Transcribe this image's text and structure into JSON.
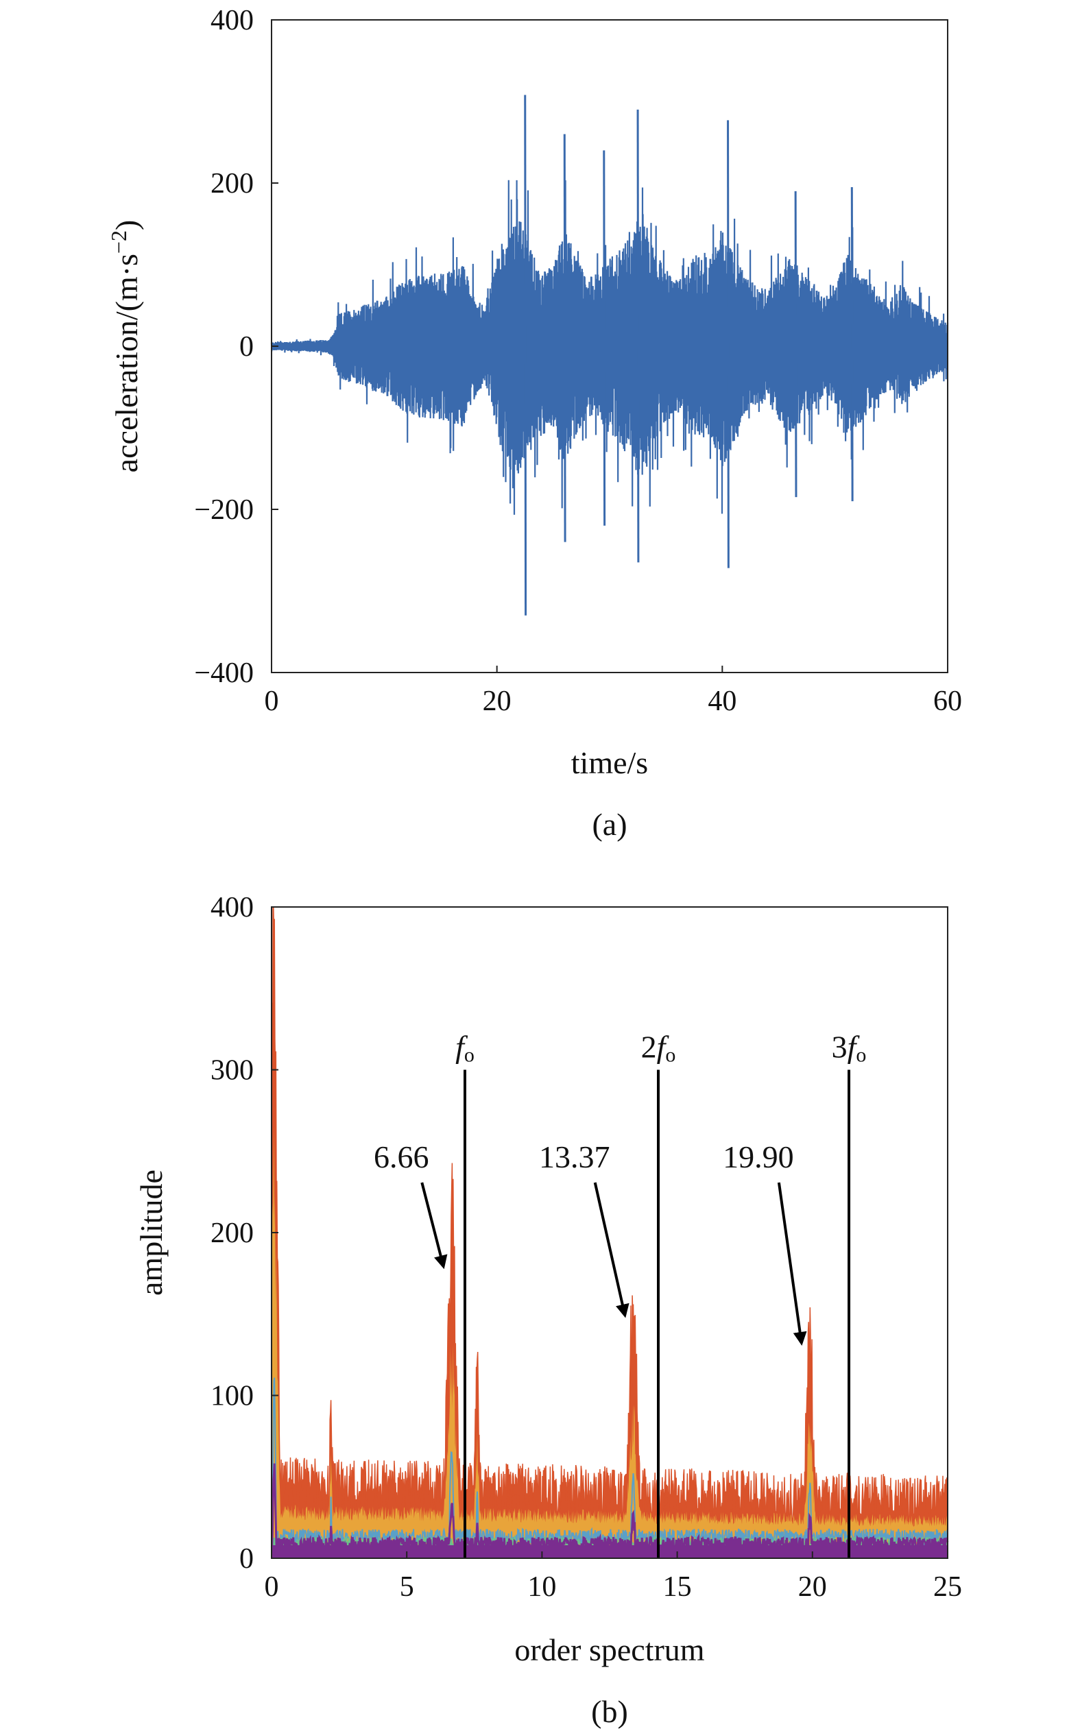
{
  "chart_data": [
    {
      "type": "line",
      "panel_caption": "(a)",
      "xlabel": "time/s",
      "ylabel": "acceleration/(m·s",
      "ylabel_sup": "−2",
      "ylabel_close": ")",
      "xlim": [
        0,
        60
      ],
      "ylim": [
        -400,
        400
      ],
      "xticks": [
        0,
        20,
        40,
        60
      ],
      "xtick_labels": [
        "0",
        "20",
        "40",
        "60"
      ],
      "yticks": [
        -400,
        -200,
        0,
        200,
        400
      ],
      "ytick_labels": [
        "−400",
        "−200",
        "0",
        "200",
        "400"
      ],
      "grid": false,
      "color": "#3a6aad",
      "series": [
        {
          "envelope_time": [
            0,
            5,
            5.5,
            6,
            10,
            12,
            15,
            17,
            18,
            19,
            20,
            21,
            22,
            22.5,
            23,
            24,
            25,
            26,
            27,
            28,
            29,
            30,
            31,
            32,
            33,
            34,
            35,
            36,
            37,
            38,
            39,
            40,
            41,
            42,
            43,
            44,
            45,
            46,
            47,
            48,
            49,
            50,
            51,
            52,
            53,
            54,
            55,
            56,
            57,
            58,
            59,
            60
          ],
          "envelope_amplitude": [
            5,
            8,
            15,
            40,
            60,
            85,
            90,
            100,
            65,
            45,
            110,
            150,
            160,
            140,
            120,
            90,
            100,
            145,
            110,
            85,
            90,
            110,
            120,
            150,
            165,
            115,
            95,
            80,
            100,
            120,
            110,
            150,
            120,
            85,
            75,
            70,
            90,
            110,
            95,
            80,
            60,
            70,
            120,
            100,
            80,
            60,
            55,
            75,
            55,
            45,
            35,
            30
          ],
          "spikes": [
            {
              "t": 22.5,
              "max": 308,
              "min": -330
            },
            {
              "t": 26.0,
              "max": 260,
              "min": -240
            },
            {
              "t": 29.5,
              "max": 240,
              "min": -220
            },
            {
              "t": 32.5,
              "max": 290,
              "min": -265
            },
            {
              "t": 40.5,
              "max": 277,
              "min": -272
            },
            {
              "t": 46.5,
              "max": 190,
              "min": -185
            },
            {
              "t": 51.5,
              "max": 195,
              "min": -190
            }
          ]
        }
      ]
    },
    {
      "type": "area",
      "panel_caption": "(b)",
      "xlabel": "order spectrum",
      "ylabel": "amplitude",
      "xlim": [
        0,
        25
      ],
      "ylim": [
        0,
        400
      ],
      "xticks": [
        0,
        5,
        10,
        15,
        20,
        25
      ],
      "xtick_labels": [
        "0",
        "5",
        "10",
        "15",
        "20",
        "25"
      ],
      "yticks": [
        0,
        100,
        200,
        300,
        400
      ],
      "ytick_labels": [
        "0",
        "100",
        "200",
        "300",
        "400"
      ],
      "grid": false,
      "colors": {
        "top": "#d9532b",
        "fill": "#e8a43a",
        "mid1": "#5aa0c8",
        "mid2": "#6cc28a",
        "low": "#7a2d8f",
        "vline": "#000000"
      },
      "peaks": [
        {
          "x": 0.1,
          "y": 400,
          "w": 0.15
        },
        {
          "x": 6.66,
          "y": 205,
          "w": 0.22
        },
        {
          "x": 13.37,
          "y": 138,
          "w": 0.22
        },
        {
          "x": 19.9,
          "y": 125,
          "w": 0.18
        },
        {
          "x": 2.2,
          "y": 100,
          "w": 0.06
        },
        {
          "x": 7.6,
          "y": 110,
          "w": 0.1
        }
      ],
      "vlines": [
        {
          "x": 7.15,
          "label_pre": "",
          "label_f": "f",
          "label_sub": "o"
        },
        {
          "x": 14.3,
          "label_pre": "2",
          "label_f": "f",
          "label_sub": "o"
        },
        {
          "x": 21.35,
          "label_pre": "3",
          "label_f": "f",
          "label_sub": "o"
        }
      ],
      "annotations": [
        {
          "text": "6.66",
          "target_x": 6.66,
          "target_y": 175
        },
        {
          "text": "13.37",
          "target_x": 13.37,
          "target_y": 145
        },
        {
          "text": "19.90",
          "target_x": 19.9,
          "target_y": 128
        }
      ]
    }
  ]
}
